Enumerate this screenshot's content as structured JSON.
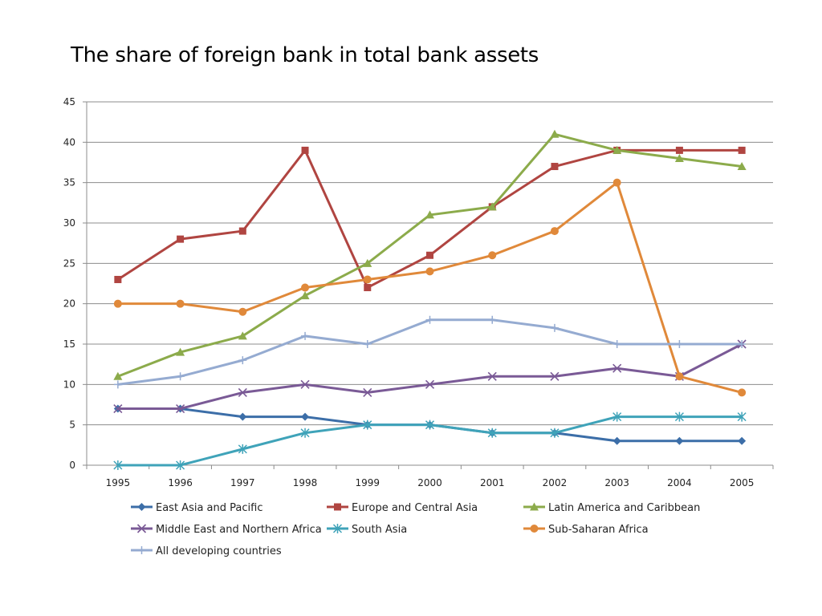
{
  "chart_data": {
    "type": "line",
    "title": "The share of foreign bank in total bank assets",
    "xlabel": "",
    "ylabel": "",
    "x": [
      "1995",
      "1996",
      "1997",
      "1998",
      "1999",
      "2000",
      "2001",
      "2002",
      "2003",
      "2004",
      "2005"
    ],
    "ylim": [
      0,
      45
    ],
    "yticks": [
      0,
      5,
      10,
      15,
      20,
      25,
      30,
      35,
      40,
      45
    ],
    "grid": true,
    "legend_position": "bottom",
    "series": [
      {
        "name": "East Asia and Pacific",
        "color": "#3c6ea8",
        "marker": "diamond",
        "values": [
          7,
          7,
          6,
          6,
          5,
          5,
          4,
          4,
          3,
          3,
          3
        ]
      },
      {
        "name": "Europe and Central Asia",
        "color": "#b04541",
        "marker": "square",
        "values": [
          23,
          28,
          29,
          39,
          22,
          26,
          32,
          37,
          39,
          39,
          39
        ]
      },
      {
        "name": "Latin America and Caribbean",
        "color": "#8cab4b",
        "marker": "triangle",
        "values": [
          11,
          14,
          16,
          21,
          25,
          31,
          32,
          41,
          39,
          38,
          37
        ]
      },
      {
        "name": "Middle East and Northern Africa",
        "color": "#7a5a96",
        "marker": "x",
        "values": [
          7,
          7,
          9,
          10,
          9,
          10,
          11,
          11,
          12,
          11,
          15
        ]
      },
      {
        "name": "South Asia",
        "color": "#3fa3b9",
        "marker": "star",
        "values": [
          0,
          0,
          2,
          4,
          5,
          5,
          4,
          4,
          6,
          6,
          6
        ]
      },
      {
        "name": "Sub-Saharan Africa",
        "color": "#e0893a",
        "marker": "circle",
        "values": [
          20,
          20,
          19,
          22,
          23,
          24,
          26,
          29,
          35,
          11,
          9
        ]
      },
      {
        "name": "All developing countries",
        "color": "#95abd1",
        "marker": "plus",
        "values": [
          10,
          11,
          13,
          16,
          15,
          18,
          18,
          17,
          15,
          15,
          15
        ]
      }
    ]
  }
}
